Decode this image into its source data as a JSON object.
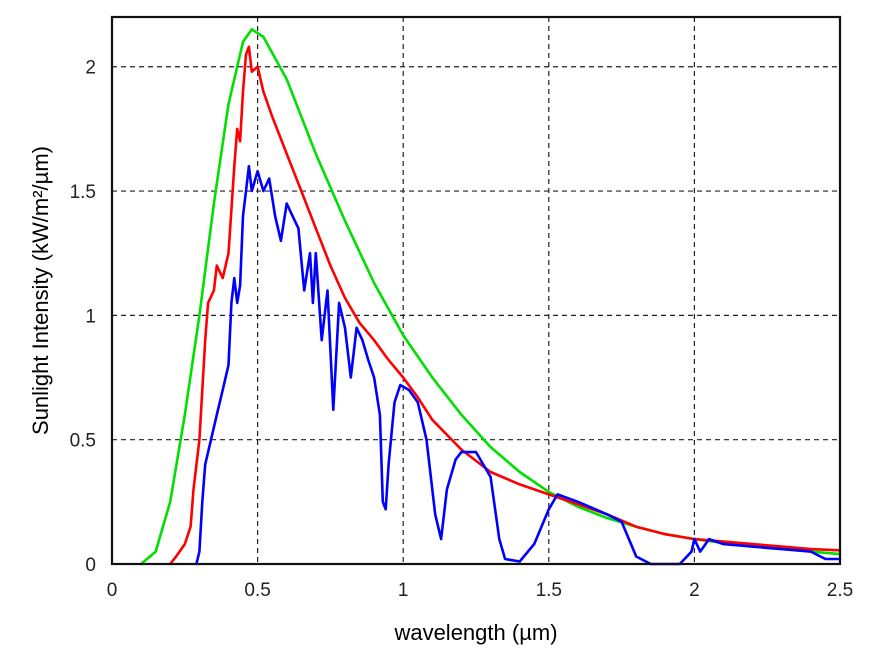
{
  "chart_data": {
    "type": "line",
    "title": "",
    "xlabel": "wavelength (µm)",
    "ylabel": "Sunlight Intensity (kW/m²/µm)",
    "xlim": [
      0,
      2.5
    ],
    "ylim": [
      0,
      2.2
    ],
    "x_ticks": [
      0,
      0.5,
      1,
      1.5,
      2,
      2.5
    ],
    "x_tick_labels": [
      "0",
      "0.5",
      "1",
      "1.5",
      "2",
      "2.5"
    ],
    "y_ticks": [
      0,
      0.5,
      1,
      1.5,
      2
    ],
    "y_tick_labels": [
      "0",
      "0.5",
      "1",
      "1.5",
      "2"
    ],
    "grid": true,
    "legend": "none",
    "series": [
      {
        "color": "#00e000",
        "points": [
          [
            0.1,
            0
          ],
          [
            0.15,
            0.05
          ],
          [
            0.2,
            0.25
          ],
          [
            0.25,
            0.6
          ],
          [
            0.3,
            1.0
          ],
          [
            0.35,
            1.45
          ],
          [
            0.4,
            1.85
          ],
          [
            0.45,
            2.1
          ],
          [
            0.48,
            2.15
          ],
          [
            0.52,
            2.12
          ],
          [
            0.6,
            1.95
          ],
          [
            0.7,
            1.65
          ],
          [
            0.8,
            1.38
          ],
          [
            0.9,
            1.13
          ],
          [
            1.0,
            0.92
          ],
          [
            1.1,
            0.75
          ],
          [
            1.2,
            0.6
          ],
          [
            1.3,
            0.47
          ],
          [
            1.4,
            0.37
          ],
          [
            1.5,
            0.29
          ],
          [
            1.6,
            0.23
          ],
          [
            1.7,
            0.185
          ],
          [
            1.8,
            0.15
          ],
          [
            1.9,
            0.12
          ],
          [
            2.0,
            0.1
          ],
          [
            2.1,
            0.085
          ],
          [
            2.2,
            0.07
          ],
          [
            2.3,
            0.06
          ],
          [
            2.4,
            0.05
          ],
          [
            2.5,
            0.04
          ]
        ]
      },
      {
        "color": "#ff0000",
        "points": [
          [
            0.2,
            0
          ],
          [
            0.22,
            0.03
          ],
          [
            0.25,
            0.08
          ],
          [
            0.27,
            0.15
          ],
          [
            0.28,
            0.3
          ],
          [
            0.3,
            0.5
          ],
          [
            0.31,
            0.7
          ],
          [
            0.32,
            0.9
          ],
          [
            0.33,
            1.05
          ],
          [
            0.35,
            1.1
          ],
          [
            0.36,
            1.2
          ],
          [
            0.38,
            1.15
          ],
          [
            0.4,
            1.25
          ],
          [
            0.42,
            1.6
          ],
          [
            0.43,
            1.75
          ],
          [
            0.44,
            1.7
          ],
          [
            0.45,
            1.9
          ],
          [
            0.46,
            2.05
          ],
          [
            0.47,
            2.08
          ],
          [
            0.48,
            1.98
          ],
          [
            0.5,
            2.0
          ],
          [
            0.52,
            1.9
          ],
          [
            0.55,
            1.8
          ],
          [
            0.6,
            1.65
          ],
          [
            0.65,
            1.5
          ],
          [
            0.7,
            1.35
          ],
          [
            0.75,
            1.2
          ],
          [
            0.8,
            1.07
          ],
          [
            0.85,
            0.97
          ],
          [
            0.9,
            0.9
          ],
          [
            0.95,
            0.82
          ],
          [
            1.0,
            0.75
          ],
          [
            1.05,
            0.67
          ],
          [
            1.1,
            0.58
          ],
          [
            1.2,
            0.46
          ],
          [
            1.3,
            0.37
          ],
          [
            1.4,
            0.32
          ],
          [
            1.5,
            0.28
          ],
          [
            1.6,
            0.24
          ],
          [
            1.7,
            0.2
          ],
          [
            1.8,
            0.15
          ],
          [
            1.9,
            0.12
          ],
          [
            2.0,
            0.1
          ],
          [
            2.1,
            0.09
          ],
          [
            2.2,
            0.08
          ],
          [
            2.3,
            0.07
          ],
          [
            2.4,
            0.06
          ],
          [
            2.5,
            0.055
          ]
        ]
      },
      {
        "color": "#0000ff",
        "points": [
          [
            0.29,
            0
          ],
          [
            0.3,
            0.05
          ],
          [
            0.31,
            0.25
          ],
          [
            0.32,
            0.4
          ],
          [
            0.34,
            0.5
          ],
          [
            0.36,
            0.6
          ],
          [
            0.38,
            0.7
          ],
          [
            0.4,
            0.8
          ],
          [
            0.41,
            1.05
          ],
          [
            0.42,
            1.15
          ],
          [
            0.43,
            1.05
          ],
          [
            0.44,
            1.12
          ],
          [
            0.45,
            1.4
          ],
          [
            0.46,
            1.5
          ],
          [
            0.47,
            1.6
          ],
          [
            0.48,
            1.5
          ],
          [
            0.5,
            1.58
          ],
          [
            0.52,
            1.5
          ],
          [
            0.54,
            1.55
          ],
          [
            0.56,
            1.4
          ],
          [
            0.58,
            1.3
          ],
          [
            0.6,
            1.45
          ],
          [
            0.62,
            1.4
          ],
          [
            0.64,
            1.35
          ],
          [
            0.66,
            1.1
          ],
          [
            0.68,
            1.25
          ],
          [
            0.69,
            1.05
          ],
          [
            0.7,
            1.25
          ],
          [
            0.72,
            0.9
          ],
          [
            0.74,
            1.1
          ],
          [
            0.76,
            0.62
          ],
          [
            0.78,
            1.05
          ],
          [
            0.8,
            0.95
          ],
          [
            0.82,
            0.75
          ],
          [
            0.84,
            0.95
          ],
          [
            0.86,
            0.9
          ],
          [
            0.88,
            0.82
          ],
          [
            0.9,
            0.75
          ],
          [
            0.92,
            0.6
          ],
          [
            0.93,
            0.25
          ],
          [
            0.94,
            0.22
          ],
          [
            0.95,
            0.4
          ],
          [
            0.97,
            0.65
          ],
          [
            0.99,
            0.72
          ],
          [
            1.02,
            0.7
          ],
          [
            1.05,
            0.65
          ],
          [
            1.08,
            0.5
          ],
          [
            1.11,
            0.2
          ],
          [
            1.13,
            0.1
          ],
          [
            1.15,
            0.3
          ],
          [
            1.18,
            0.42
          ],
          [
            1.2,
            0.45
          ],
          [
            1.25,
            0.45
          ],
          [
            1.3,
            0.35
          ],
          [
            1.33,
            0.1
          ],
          [
            1.35,
            0.02
          ],
          [
            1.4,
            0.01
          ],
          [
            1.45,
            0.08
          ],
          [
            1.5,
            0.22
          ],
          [
            1.53,
            0.28
          ],
          [
            1.6,
            0.25
          ],
          [
            1.7,
            0.2
          ],
          [
            1.75,
            0.17
          ],
          [
            1.8,
            0.03
          ],
          [
            1.85,
            0
          ],
          [
            1.95,
            0
          ],
          [
            1.99,
            0.05
          ],
          [
            2.0,
            0.1
          ],
          [
            2.02,
            0.05
          ],
          [
            2.05,
            0.1
          ],
          [
            2.1,
            0.08
          ],
          [
            2.2,
            0.07
          ],
          [
            2.3,
            0.06
          ],
          [
            2.4,
            0.05
          ],
          [
            2.45,
            0.02
          ],
          [
            2.5,
            0.02
          ]
        ]
      }
    ]
  }
}
